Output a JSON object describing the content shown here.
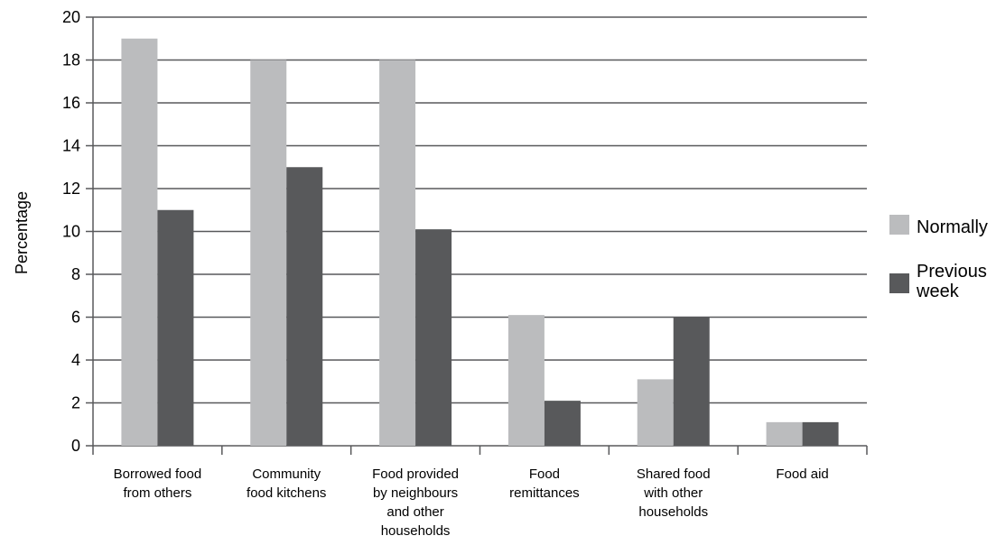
{
  "chart_data": {
    "type": "bar",
    "title": "",
    "xlabel": "",
    "ylabel": "Percentage",
    "ylim": [
      0,
      20
    ],
    "y_ticks": [
      "0",
      "2",
      "4",
      "6",
      "8",
      "10",
      "12",
      "14",
      "16",
      "18",
      "20"
    ],
    "grid": "horizontal",
    "legend_position": "right",
    "categories": [
      [
        "Borrowed food",
        "from others"
      ],
      [
        "Community",
        "food kitchens"
      ],
      [
        "Food provided",
        "by neighbours",
        "and other",
        "households"
      ],
      [
        "Food",
        "remittances"
      ],
      [
        "Shared food",
        "with other",
        "households"
      ],
      [
        "Food aid"
      ]
    ],
    "series": [
      {
        "name": [
          "Normally"
        ],
        "color": "#bbbcbe",
        "values": [
          19,
          18,
          18,
          6.1,
          3.1,
          1.1
        ]
      },
      {
        "name": [
          "Previous",
          "week"
        ],
        "color": "#58595b",
        "values": [
          11,
          13,
          10.1,
          2.1,
          6,
          1.1
        ]
      }
    ]
  }
}
